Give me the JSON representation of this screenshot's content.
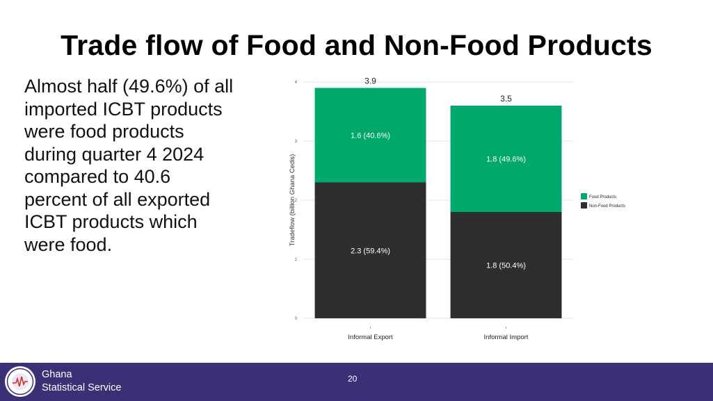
{
  "slide": {
    "title": "Trade flow of Food and Non-Food Products",
    "body_lines": [
      "Almost half (49.6%) of all",
      "imported ICBT products",
      "were food products",
      "during quarter 4 2024",
      "compared to 40.6",
      "percent of all exported",
      "ICBT products which",
      "were food."
    ],
    "page_number": "20"
  },
  "footer": {
    "org_line1": "Ghana",
    "org_line2": "Statistical Service",
    "logo_icon": "gss-seal-icon",
    "background": "#3b2f75"
  },
  "chart_data": {
    "type": "bar",
    "stacked": true,
    "categories": [
      "Informal Export",
      "Informal Import"
    ],
    "series": [
      {
        "name": "Non-Food Products",
        "color": "#2e2e2e",
        "values": [
          2.3,
          1.8
        ],
        "labels": [
          "2.3 (59.4%)",
          "1.8 (50.4%)"
        ]
      },
      {
        "name": "Food Products",
        "color": "#00a86b",
        "values": [
          1.6,
          1.8
        ],
        "labels": [
          "1.6 (40.6%)",
          "1.8 (49.6%)"
        ]
      }
    ],
    "totals": [
      "3.9",
      "3.5"
    ],
    "ylabel": "Tradeflow (billion Ghana Cedis)",
    "xlabel": "",
    "ylim": [
      0,
      4
    ],
    "yticks": [
      "0",
      "1",
      "2",
      "3",
      "4"
    ],
    "legend": [
      "Food Products",
      "Non-Food Products"
    ],
    "legend_position": "right",
    "grid": true
  }
}
